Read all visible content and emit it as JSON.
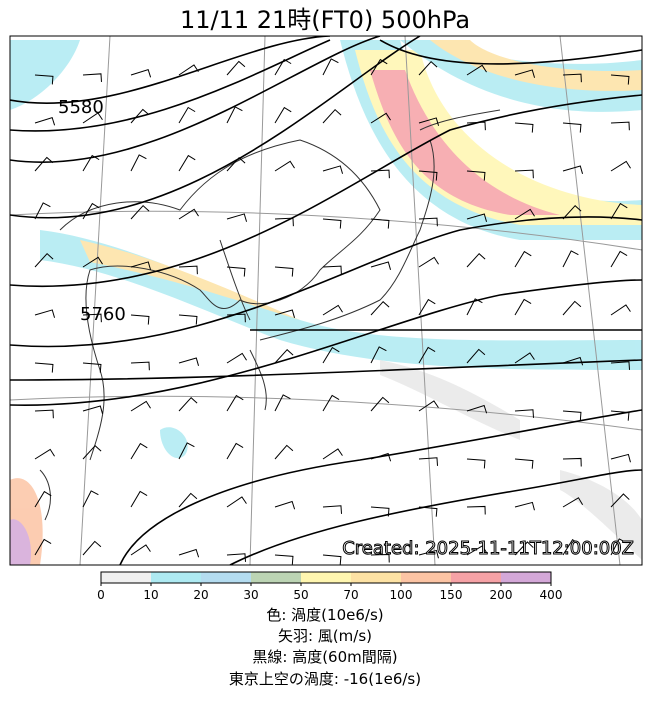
{
  "map": {
    "title": "11/11  21時(FT0)     500hPa",
    "contour_labels": [
      5580,
      5760
    ],
    "created": "Created: 2025-11-11T12:00:00Z",
    "colorbar": {
      "ticks": [
        0,
        10,
        20,
        30,
        50,
        70,
        100,
        150,
        200,
        400
      ],
      "colors": [
        "#f0f0f0",
        "#aeeaf2",
        "#b4dcf0",
        "#bcd4b4",
        "#fff6b0",
        "#fde2a4",
        "#fcc4a4",
        "#f6a2a6",
        "#d4a8d8"
      ]
    },
    "legend": [
      "色: 渦度(10e6/s)",
      "矢羽: 風(m/s)",
      "黒線: 高度(60m間隔)",
      "東京上空の渦度: -16(1e6/s)"
    ]
  }
}
